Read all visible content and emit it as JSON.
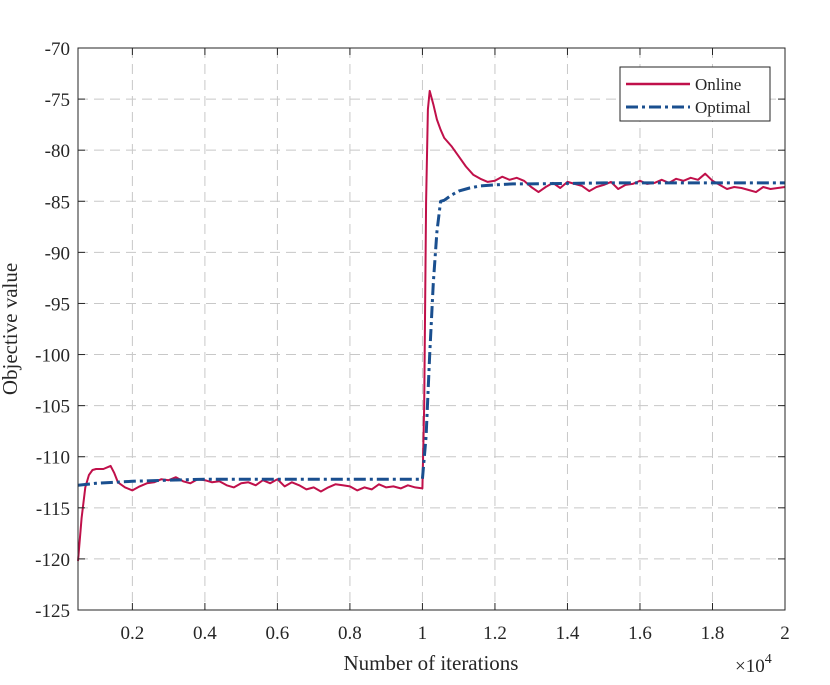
{
  "chart_data": {
    "type": "line",
    "xlabel": "Number of iterations",
    "ylabel": "Objective value",
    "x_multiplier_label": "×10",
    "x_multiplier_exp": "4",
    "xlim": [
      0.05,
      2.0
    ],
    "ylim": [
      -125,
      -70
    ],
    "x_ticks": [
      0.2,
      0.4,
      0.6,
      0.8,
      1.0,
      1.2,
      1.4,
      1.6,
      1.8,
      2.0
    ],
    "x_tick_labels": [
      "0.2",
      "0.4",
      "0.6",
      "0.8",
      "1",
      "1.2",
      "1.4",
      "1.6",
      "1.8",
      "2"
    ],
    "y_ticks": [
      -125,
      -120,
      -115,
      -110,
      -105,
      -100,
      -95,
      -90,
      -85,
      -80,
      -75,
      -70
    ],
    "y_tick_labels": [
      "-125",
      "-120",
      "-115",
      "-110",
      "-105",
      "-100",
      "-95",
      "-90",
      "-85",
      "-80",
      "-75",
      "-70"
    ],
    "grid": true,
    "legend_position": "top-right",
    "colors": {
      "online": "#c0104a",
      "optimal": "#1a4f8f",
      "grid": "#c8c8c8",
      "axis": "#262626"
    },
    "series": [
      {
        "name": "Online",
        "style": "solid",
        "x": [
          0.05,
          0.06,
          0.07,
          0.08,
          0.09,
          0.1,
          0.12,
          0.14,
          0.15,
          0.16,
          0.18,
          0.2,
          0.22,
          0.24,
          0.26,
          0.28,
          0.3,
          0.32,
          0.34,
          0.36,
          0.38,
          0.4,
          0.42,
          0.44,
          0.46,
          0.48,
          0.5,
          0.52,
          0.54,
          0.56,
          0.58,
          0.6,
          0.62,
          0.64,
          0.66,
          0.68,
          0.7,
          0.72,
          0.74,
          0.76,
          0.78,
          0.8,
          0.82,
          0.84,
          0.86,
          0.88,
          0.9,
          0.92,
          0.94,
          0.96,
          0.98,
          1.0,
          1.005,
          1.01,
          1.015,
          1.02,
          1.03,
          1.04,
          1.05,
          1.06,
          1.08,
          1.1,
          1.12,
          1.14,
          1.16,
          1.18,
          1.2,
          1.22,
          1.24,
          1.26,
          1.28,
          1.3,
          1.32,
          1.34,
          1.36,
          1.38,
          1.4,
          1.42,
          1.44,
          1.46,
          1.48,
          1.5,
          1.52,
          1.54,
          1.56,
          1.58,
          1.6,
          1.62,
          1.64,
          1.66,
          1.68,
          1.7,
          1.72,
          1.74,
          1.76,
          1.78,
          1.8,
          1.82,
          1.84,
          1.86,
          1.88,
          1.9,
          1.92,
          1.94,
          1.96,
          1.98,
          2.0
        ],
        "y": [
          -120.2,
          -116.0,
          -113.0,
          -111.8,
          -111.3,
          -111.2,
          -111.2,
          -110.9,
          -111.6,
          -112.5,
          -113.0,
          -113.3,
          -112.9,
          -112.6,
          -112.5,
          -112.2,
          -112.3,
          -112.0,
          -112.4,
          -112.6,
          -112.2,
          -112.3,
          -112.5,
          -112.4,
          -112.8,
          -113.0,
          -112.6,
          -112.5,
          -112.8,
          -112.3,
          -112.6,
          -112.2,
          -112.9,
          -112.5,
          -112.8,
          -113.2,
          -113.0,
          -113.4,
          -113.0,
          -112.7,
          -112.8,
          -112.9,
          -113.3,
          -113.0,
          -113.2,
          -112.7,
          -113.0,
          -112.9,
          -113.1,
          -112.8,
          -113.0,
          -113.1,
          -105.0,
          -85.0,
          -76.0,
          -74.2,
          -75.5,
          -77.0,
          -78.0,
          -78.8,
          -79.6,
          -80.6,
          -81.6,
          -82.4,
          -82.8,
          -83.1,
          -83.0,
          -82.6,
          -82.9,
          -82.7,
          -83.0,
          -83.6,
          -84.1,
          -83.6,
          -83.2,
          -83.7,
          -83.1,
          -83.3,
          -83.5,
          -84.0,
          -83.6,
          -83.4,
          -83.1,
          -83.8,
          -83.4,
          -83.3,
          -83.0,
          -83.3,
          -83.2,
          -82.9,
          -83.2,
          -82.8,
          -83.0,
          -82.7,
          -82.9,
          -82.3,
          -83.0,
          -83.4,
          -83.8,
          -83.6,
          -83.7,
          -83.9,
          -84.1,
          -83.6,
          -83.8,
          -83.7,
          -83.6
        ]
      },
      {
        "name": "Optimal",
        "style": "dashdot",
        "x": [
          0.05,
          0.1,
          0.15,
          0.2,
          0.25,
          0.3,
          0.35,
          0.4,
          0.5,
          0.6,
          0.7,
          0.8,
          0.9,
          0.95,
          1.0,
          1.01,
          1.02,
          1.03,
          1.04,
          1.05,
          1.06,
          1.08,
          1.1,
          1.13,
          1.16,
          1.2,
          1.25,
          1.3,
          1.4,
          1.5,
          1.6,
          1.7,
          1.8,
          1.9,
          2.0
        ],
        "y": [
          -112.8,
          -112.6,
          -112.5,
          -112.4,
          -112.35,
          -112.3,
          -112.25,
          -112.2,
          -112.2,
          -112.2,
          -112.2,
          -112.2,
          -112.2,
          -112.2,
          -112.2,
          -108.0,
          -100.0,
          -93.0,
          -88.0,
          -85.0,
          -84.9,
          -84.4,
          -84.0,
          -83.7,
          -83.5,
          -83.4,
          -83.3,
          -83.3,
          -83.25,
          -83.2,
          -83.2,
          -83.2,
          -83.2,
          -83.2,
          -83.2
        ]
      }
    ]
  }
}
